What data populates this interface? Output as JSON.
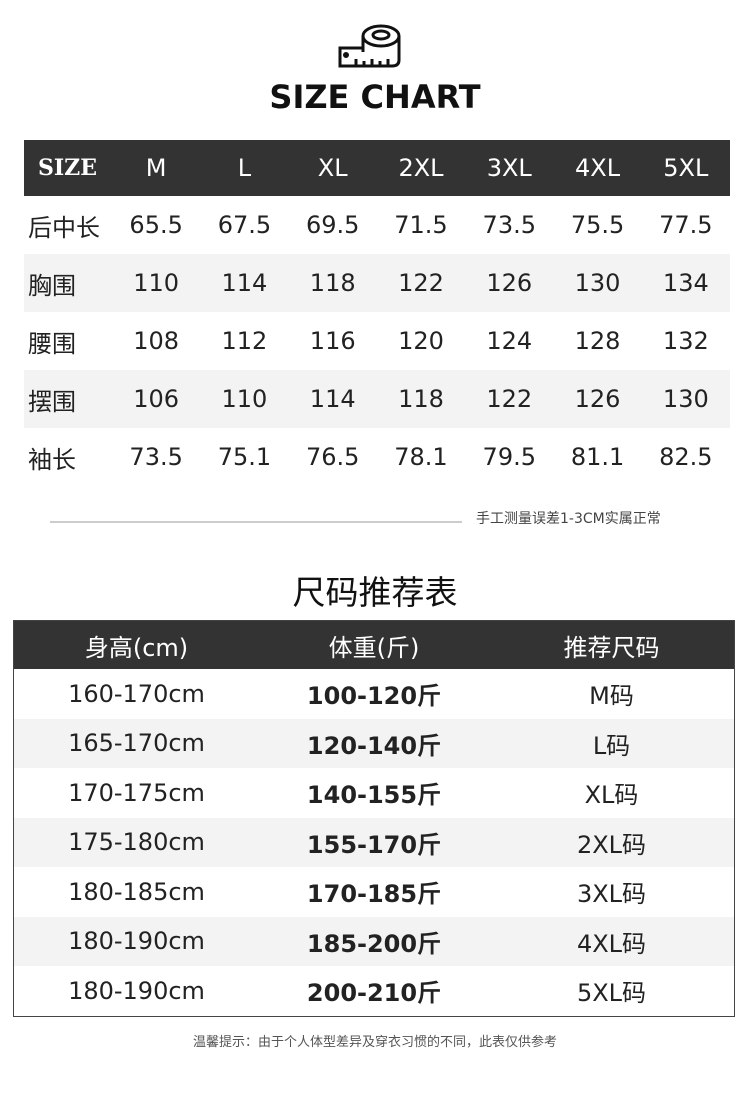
{
  "header": {
    "title": "SIZE CHART",
    "icon": "tape-measure-icon"
  },
  "size_table": {
    "columns": [
      "SIZE",
      "M",
      "L",
      "XL",
      "2XL",
      "3XL",
      "4XL",
      "5XL"
    ],
    "rows": [
      [
        "后中长",
        "65.5",
        "67.5",
        "69.5",
        "71.5",
        "73.5",
        "75.5",
        "77.5"
      ],
      [
        "胸围",
        "110",
        "114",
        "118",
        "122",
        "126",
        "130",
        "134"
      ],
      [
        "腰围",
        "108",
        "112",
        "116",
        "120",
        "124",
        "128",
        "132"
      ],
      [
        "摆围",
        "106",
        "110",
        "114",
        "118",
        "122",
        "126",
        "130"
      ],
      [
        "袖长",
        "73.5",
        "75.1",
        "76.5",
        "78.1",
        "79.5",
        "81.1",
        "82.5"
      ]
    ],
    "note": "手工测量误差1-3CM实属正常"
  },
  "recommend_table": {
    "title": "尺码推荐表",
    "columns": [
      "身高(cm)",
      "体重(斤)",
      "推荐尺码"
    ],
    "rows": [
      [
        "160-170cm",
        "100-120斤",
        "M码"
      ],
      [
        "165-170cm",
        "120-140斤",
        "L码"
      ],
      [
        "170-175cm",
        "140-155斤",
        "XL码"
      ],
      [
        "175-180cm",
        "155-170斤",
        "2XL码"
      ],
      [
        "180-185cm",
        "170-185斤",
        "3XL码"
      ],
      [
        "180-190cm",
        "185-200斤",
        "4XL码"
      ],
      [
        "180-190cm",
        "200-210斤",
        "5XL码"
      ]
    ]
  },
  "footer_note": "温馨提示：由于个人体型差异及穿衣习惯的不同，此表仅供参考"
}
